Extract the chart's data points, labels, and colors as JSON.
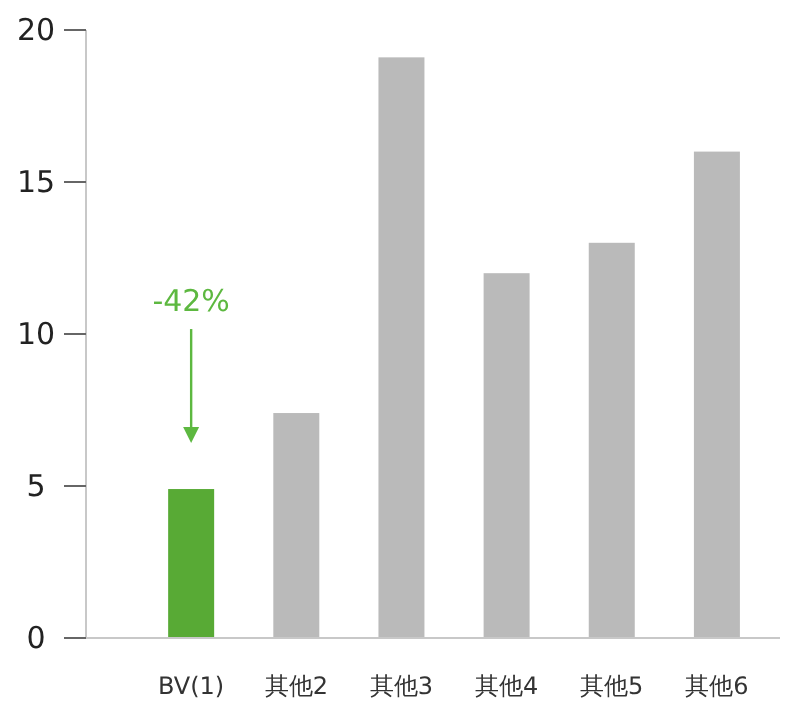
{
  "chart_data": {
    "type": "bar",
    "categories": [
      "BV(1)",
      "其他2",
      "其他3",
      "其他4",
      "其他5",
      "其他6"
    ],
    "values": [
      4.9,
      7.4,
      19.1,
      12.0,
      13.0,
      16.0
    ],
    "colors": [
      "#58aa35",
      "#bababa",
      "#bababa",
      "#bababa",
      "#bababa",
      "#bababa"
    ],
    "ylim": [
      0,
      20
    ],
    "yticks": [
      0,
      5,
      10,
      15,
      20
    ],
    "grid": false,
    "annotations": [
      "-42%"
    ]
  }
}
